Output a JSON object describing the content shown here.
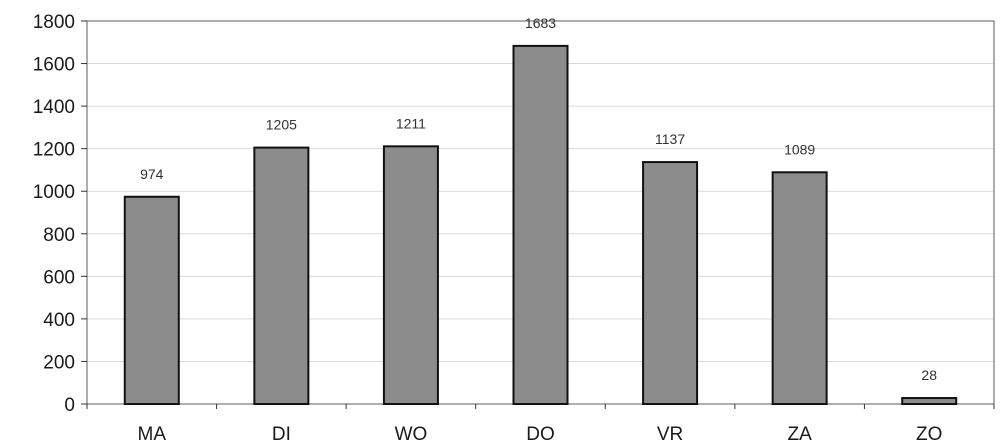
{
  "chart_data": {
    "type": "bar",
    "title": "",
    "xlabel": "",
    "ylabel": "",
    "categories": [
      "MA",
      "DI",
      "WO",
      "DO",
      "VR",
      "ZA",
      "ZO"
    ],
    "values": [
      974,
      1205,
      1211,
      1683,
      1137,
      1089,
      28
    ],
    "data_labels": [
      "974",
      "1205",
      "1211",
      "1683",
      "1137",
      "1089",
      "28"
    ],
    "ylim": [
      0,
      1800
    ],
    "yticks": [
      0,
      200,
      400,
      600,
      800,
      1000,
      1200,
      1400,
      1600,
      1800
    ],
    "ytick_labels": [
      "0",
      "200",
      "400",
      "600",
      "800",
      "1000",
      "1200",
      "1400",
      "1600",
      "1800"
    ],
    "grid": true,
    "legend": "none",
    "colors": {
      "bar_fill": "#8c8c8c",
      "bar_stroke": "#111111",
      "grid": "#d9d9d9",
      "frame": "#777777"
    }
  }
}
